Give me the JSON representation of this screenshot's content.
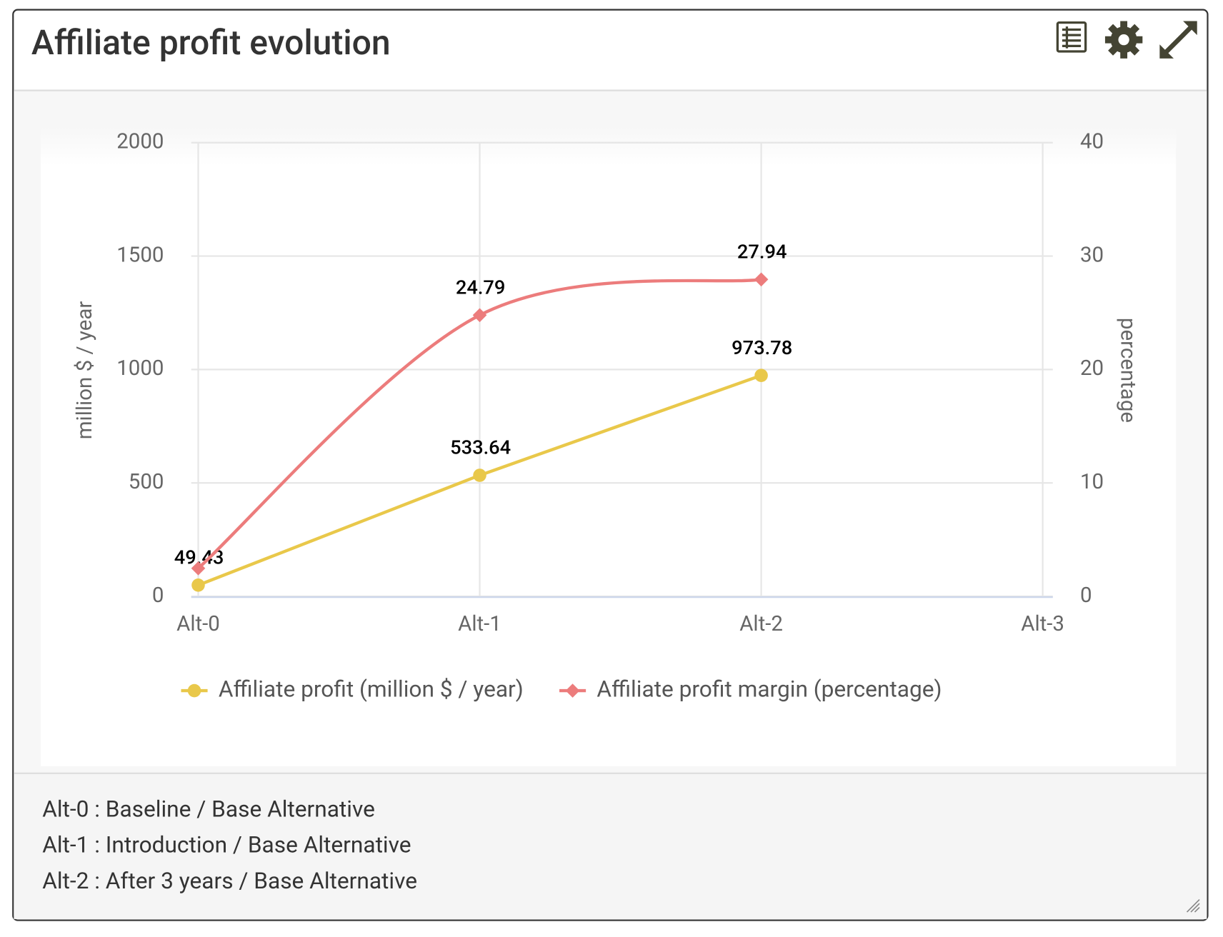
{
  "title": "Affiliate profit evolution",
  "chart_data": {
    "type": "line",
    "categories": [
      "Alt-0",
      "Alt-1",
      "Alt-2",
      "Alt-3"
    ],
    "series": [
      {
        "name": "Affiliate profit (million $ / year)",
        "color": "#e9c84a",
        "marker": "circle",
        "smooth": false,
        "values": [
          49.43,
          533.64,
          973.78,
          null
        ]
      },
      {
        "name": "Affiliate profit margin (percentage)",
        "color": "#ec7c7c",
        "marker": "diamond",
        "smooth": true,
        "axis": "y2",
        "values": [
          2.47,
          24.79,
          27.94,
          null
        ],
        "value_labels": [
          null,
          "24.79",
          "27.94",
          null
        ]
      }
    ],
    "ylabel": "million $ / year",
    "y2label": "percentage",
    "ylim": [
      0,
      2000
    ],
    "yticks": [
      0,
      500,
      1000,
      1500,
      2000
    ],
    "y2lim": [
      0,
      40
    ],
    "y2ticks": [
      0,
      10,
      20,
      30,
      40
    ],
    "grid": true,
    "legend": "bottom"
  },
  "notes": [
    "Alt-0 : Baseline / Base Alternative",
    "Alt-1 : Introduction / Base Alternative",
    "Alt-2 : After 3 years / Base Alternative"
  ]
}
